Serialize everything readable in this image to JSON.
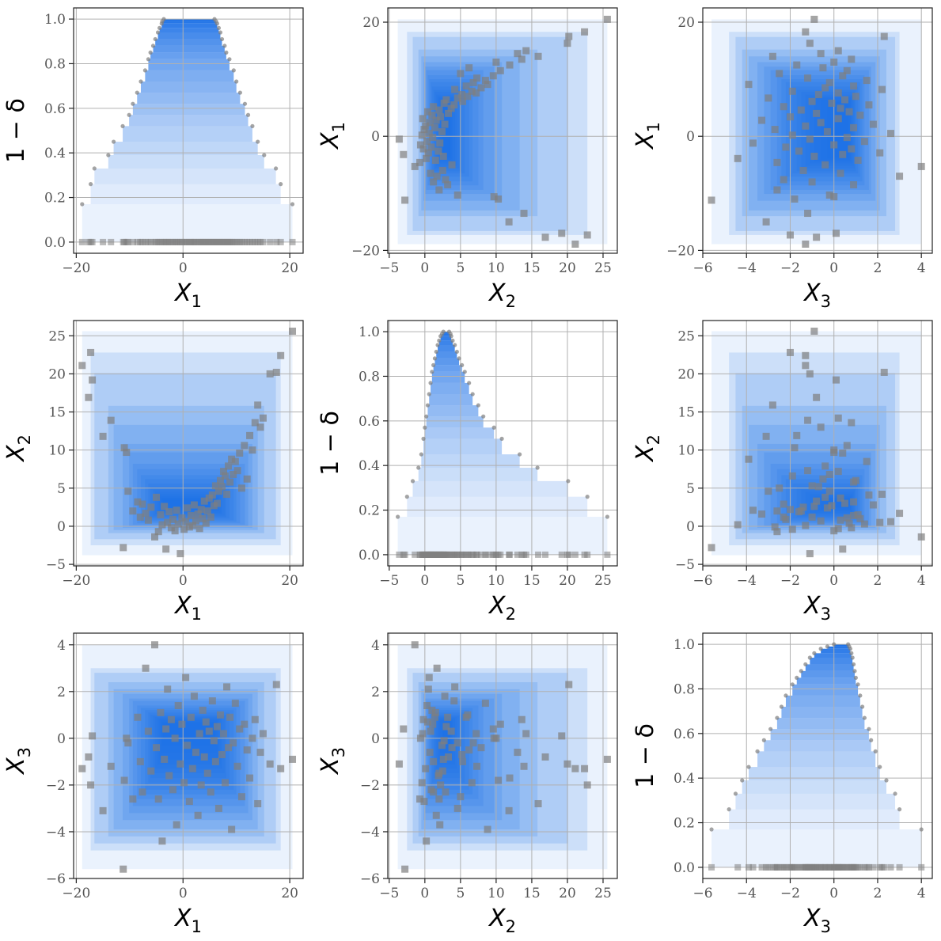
{
  "figure": {
    "description": "3x3 pairwise grid: diagonal panels show nested depth-level marginal ranges (1 - delta) with points, off-diagonal panels show nested rectangular regions with scatter points"
  },
  "variables": [
    {
      "name": "X",
      "sub": "1",
      "lim": [
        -20.5,
        22.5
      ],
      "ticks": [
        -20,
        0,
        20
      ]
    },
    {
      "name": "X",
      "sub": "2",
      "lim": [
        -5.2,
        27
      ],
      "ticks": [
        -5,
        0,
        5,
        10,
        15,
        20,
        25
      ]
    },
    {
      "name": "X",
      "sub": "3",
      "lim": [
        -6,
        4.5
      ],
      "ticks": [
        -6,
        -4,
        -2,
        0,
        2,
        4
      ]
    }
  ],
  "diagonal_ylabel": "1 − δ",
  "diag_ticks": [
    "0.0",
    "0.2",
    "0.4",
    "0.6",
    "0.8",
    "1.0"
  ],
  "colors": {
    "region": "#1a6fe6",
    "point": "#7f7f7f",
    "grid": "#b0b0b0"
  },
  "chart_data": {
    "type": "scatter",
    "layout": "pairplot 3x3",
    "levels": [
      0.17,
      0.26,
      0.33,
      0.39,
      0.45,
      0.52,
      0.57,
      0.62,
      0.67,
      0.72,
      0.77,
      0.82,
      0.85,
      0.88,
      0.91,
      0.94,
      0.96,
      0.98,
      0.99,
      1.0
    ],
    "marginal_intervals": {
      "X1": [
        [
          -18.9,
          20.5
        ],
        [
          -17.3,
          18.3
        ],
        [
          -16.6,
          17.4
        ],
        [
          -14.0,
          15.2
        ],
        [
          -13.0,
          14.0
        ],
        [
          -11.3,
          13.0
        ],
        [
          -10.1,
          12.2
        ],
        [
          -9.4,
          11.6
        ],
        [
          -8.6,
          10.7
        ],
        [
          -7.9,
          10.0
        ],
        [
          -7.1,
          9.5
        ],
        [
          -6.5,
          8.7
        ],
        [
          -6.1,
          8.1
        ],
        [
          -5.6,
          7.8
        ],
        [
          -5.2,
          7.3
        ],
        [
          -4.7,
          7.0
        ],
        [
          -4.4,
          6.7
        ],
        [
          -4.0,
          6.4
        ],
        [
          -3.9,
          6.2
        ],
        [
          -3.6,
          5.9
        ]
      ],
      "X2": [
        [
          -3.8,
          25.6
        ],
        [
          -2.5,
          22.8
        ],
        [
          -1.7,
          20.1
        ],
        [
          -0.9,
          15.8
        ],
        [
          -0.5,
          13.3
        ],
        [
          -0.2,
          10.8
        ],
        [
          0.0,
          9.7
        ],
        [
          0.2,
          8.2
        ],
        [
          0.4,
          7.5
        ],
        [
          0.6,
          6.7
        ],
        [
          0.8,
          6.2
        ],
        [
          1.0,
          5.6
        ],
        [
          1.2,
          5.2
        ],
        [
          1.4,
          4.8
        ],
        [
          1.6,
          4.5
        ],
        [
          1.8,
          4.2
        ],
        [
          2.0,
          3.9
        ],
        [
          2.2,
          3.7
        ],
        [
          2.4,
          3.6
        ],
        [
          2.6,
          3.4
        ]
      ],
      "X3": [
        [
          -5.6,
          4.0
        ],
        [
          -4.8,
          3.0
        ],
        [
          -4.5,
          2.8
        ],
        [
          -4.2,
          2.4
        ],
        [
          -3.9,
          2.1
        ],
        [
          -3.5,
          1.9
        ],
        [
          -3.2,
          1.7
        ],
        [
          -2.9,
          1.6
        ],
        [
          -2.6,
          1.4
        ],
        [
          -2.4,
          1.3
        ],
        [
          -2.2,
          1.2
        ],
        [
          -1.9,
          1.1
        ],
        [
          -1.7,
          1.0
        ],
        [
          -1.5,
          0.95
        ],
        [
          -1.3,
          0.9
        ],
        [
          -1.1,
          0.85
        ],
        [
          -0.9,
          0.8
        ],
        [
          -0.6,
          0.75
        ],
        [
          -0.3,
          0.7
        ],
        [
          0.0,
          0.65
        ]
      ]
    },
    "samples": [
      [
        -18.9,
        21.1,
        -1.3
      ],
      [
        -17.7,
        16.9,
        -0.8
      ],
      [
        -17.3,
        22.8,
        -2.0
      ],
      [
        -17.0,
        19.2,
        0.1
      ],
      [
        -15.0,
        11.8,
        -3.1
      ],
      [
        -13.5,
        13.9,
        -1.2
      ],
      [
        -11.2,
        -2.8,
        -5.6
      ],
      [
        -11.0,
        10.3,
        -1.8
      ],
      [
        -10.6,
        9.7,
        0.0
      ],
      [
        -10.3,
        4.6,
        -0.2
      ],
      [
        -9.4,
        2.0,
        -2.6
      ],
      [
        -8.5,
        3.2,
        0.9
      ],
      [
        -8.0,
        1.2,
        -1.0
      ],
      [
        -7.6,
        2.9,
        -2.3
      ],
      [
        -7.0,
        1.7,
        3.0
      ],
      [
        -6.5,
        0.8,
        0.3
      ],
      [
        -6.0,
        2.5,
        -1.4
      ],
      [
        -5.3,
        -1.4,
        4.0
      ],
      [
        -5.0,
        3.8,
        -0.4
      ],
      [
        -4.6,
        -0.7,
        -2.6
      ],
      [
        -4.2,
        1.5,
        1.1
      ],
      [
        -3.9,
        0.2,
        -4.4
      ],
      [
        -3.5,
        2.6,
        -0.9
      ],
      [
        -3.2,
        -3.0,
        0.4
      ],
      [
        -2.9,
        0.5,
        2.1
      ],
      [
        -2.6,
        1.9,
        -1.6
      ],
      [
        -2.2,
        -0.2,
        0.8
      ],
      [
        -1.9,
        0.9,
        -2.2
      ],
      [
        -1.5,
        -0.6,
        0.0
      ],
      [
        -1.2,
        2.1,
        -3.7
      ],
      [
        -0.9,
        0.3,
        1.4
      ],
      [
        -0.5,
        -3.6,
        -1.1
      ],
      [
        -0.2,
        1.1,
        0.6
      ],
      [
        0.2,
        -0.4,
        -1.9
      ],
      [
        0.5,
        0.6,
        2.6
      ],
      [
        0.8,
        2.4,
        -0.3
      ],
      [
        1.2,
        -0.1,
        -2.7
      ],
      [
        1.5,
        1.4,
        0.9
      ],
      [
        1.8,
        0.1,
        -1.3
      ],
      [
        2.1,
        2.8,
        1.8
      ],
      [
        2.4,
        0.7,
        -0.6
      ],
      [
        2.8,
        1.6,
        -3.3
      ],
      [
        3.1,
        -0.3,
        0.2
      ],
      [
        3.4,
        2.2,
        -2.0
      ],
      [
        3.7,
        1.0,
        1.2
      ],
      [
        4.0,
        3.3,
        -0.8
      ],
      [
        4.3,
        0.4,
        0.7
      ],
      [
        4.6,
        2.0,
        -1.5
      ],
      [
        4.9,
        3.7,
        0.3
      ],
      [
        5.2,
        1.2,
        -2.3
      ],
      [
        5.5,
        4.1,
        1.6
      ],
      [
        5.8,
        2.7,
        -0.1
      ],
      [
        6.1,
        5.3,
        -1.0
      ],
      [
        6.4,
        3.0,
        0.5
      ],
      [
        6.7,
        4.6,
        -3.0
      ],
      [
        7.0,
        6.0,
        1.0
      ],
      [
        7.3,
        5.2,
        -0.7
      ],
      [
        7.6,
        7.2,
        0.2
      ],
      [
        7.9,
        6.6,
        -1.9
      ],
      [
        8.2,
        4.2,
        2.2
      ],
      [
        8.5,
        7.9,
        -0.4
      ],
      [
        8.8,
        5.8,
        0.9
      ],
      [
        9.1,
        8.8,
        -3.9
      ],
      [
        9.4,
        6.8,
        -0.2
      ],
      [
        9.8,
        8.5,
        1.5
      ],
      [
        10.2,
        7.3,
        -1.2
      ],
      [
        10.6,
        9.6,
        0.4
      ],
      [
        11.0,
        5.0,
        -2.5
      ],
      [
        11.5,
        10.6,
        0.6
      ],
      [
        12.0,
        6.2,
        -0.5
      ],
      [
        12.5,
        11.9,
        -1.7
      ],
      [
        13.0,
        10.0,
        0.0
      ],
      [
        13.5,
        13.6,
        0.8
      ],
      [
        14.0,
        15.9,
        -2.8
      ],
      [
        14.5,
        13.0,
        -0.6
      ],
      [
        15.0,
        14.2,
        0.2
      ],
      [
        16.3,
        20.0,
        -1.1
      ],
      [
        17.5,
        20.2,
        2.3
      ],
      [
        18.3,
        22.4,
        -1.3
      ],
      [
        20.5,
        25.6,
        -0.9
      ]
    ]
  }
}
